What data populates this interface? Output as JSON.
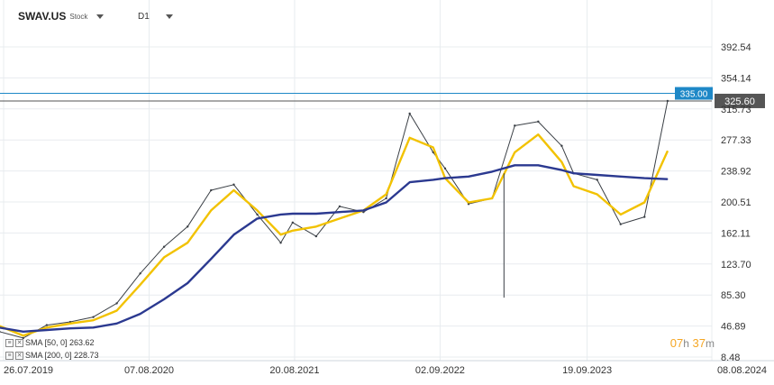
{
  "header": {
    "symbol": "SWAV.US",
    "instrument_type": "Stock",
    "timeframe": "D1"
  },
  "indicators": [
    {
      "label": "SMA [50, 0] 263.62",
      "color": "#f2c200"
    },
    {
      "label": "SMA [200, 0] 228.73",
      "color": "#2b3990"
    }
  ],
  "timer": {
    "hours": "07",
    "h_unit": "h",
    "minutes": "37",
    "m_unit": "m"
  },
  "chart_data": {
    "type": "line",
    "title": "",
    "xlabel": "",
    "ylabel": "",
    "x_ticks": [
      "26.07.2019",
      "07.08.2020",
      "20.08.2021",
      "02.09.2022",
      "19.09.2023",
      "08.08.2024"
    ],
    "y_ticks": [
      392.54,
      354.14,
      315.73,
      277.33,
      238.92,
      200.51,
      162.11,
      123.7,
      85.3,
      46.89,
      8.48
    ],
    "ylim": [
      8.48,
      392.54
    ],
    "grid": true,
    "horizontal_levels": [
      {
        "label": "335.00",
        "value": 335.0,
        "color": "#1e88c7"
      },
      {
        "label": "325.60",
        "value": 325.6,
        "color": "#555555"
      }
    ],
    "series": [
      {
        "name": "SWAV.US",
        "color": "#3a3f45",
        "x": [
          "2019-07",
          "2019-09",
          "2019-11",
          "2020-01",
          "2020-03",
          "2020-05",
          "2020-07",
          "2020-09",
          "2020-11",
          "2021-01",
          "2021-03",
          "2021-05",
          "2021-07",
          "2021-08",
          "2021-10",
          "2021-12",
          "2022-02",
          "2022-04",
          "2022-06",
          "2022-08",
          "2022-09",
          "2022-11",
          "2023-01",
          "2023-03",
          "2023-05",
          "2023-07",
          "2023-08",
          "2023-10",
          "2023-12",
          "2024-02",
          "2024-04"
        ],
        "values": [
          40,
          32,
          48,
          52,
          58,
          75,
          112,
          145,
          170,
          215,
          222,
          185,
          150,
          175,
          158,
          195,
          188,
          205,
          310,
          262,
          242,
          198,
          205,
          295,
          300,
          270,
          236,
          228,
          173,
          182,
          325.6
        ]
      },
      {
        "name": "SMA [50, 0]",
        "color": "#f2c200",
        "x": [
          "2019-07",
          "2019-09",
          "2019-11",
          "2020-01",
          "2020-03",
          "2020-05",
          "2020-07",
          "2020-09",
          "2020-11",
          "2021-01",
          "2021-03",
          "2021-05",
          "2021-07",
          "2021-08",
          "2021-10",
          "2021-12",
          "2022-02",
          "2022-04",
          "2022-06",
          "2022-08",
          "2022-09",
          "2022-11",
          "2023-01",
          "2023-03",
          "2023-05",
          "2023-07",
          "2023-08",
          "2023-10",
          "2023-12",
          "2024-02",
          "2024-04"
        ],
        "values": [
          47,
          35,
          45,
          50,
          54,
          66,
          98,
          132,
          150,
          190,
          215,
          190,
          160,
          165,
          170,
          180,
          190,
          210,
          280,
          268,
          230,
          200,
          205,
          262,
          284,
          250,
          220,
          210,
          185,
          200,
          263.62
        ]
      },
      {
        "name": "SMA [200, 0]",
        "color": "#2b3990",
        "x": [
          "2019-07",
          "2019-09",
          "2019-11",
          "2020-01",
          "2020-03",
          "2020-05",
          "2020-07",
          "2020-09",
          "2020-11",
          "2021-01",
          "2021-03",
          "2021-05",
          "2021-07",
          "2021-08",
          "2021-10",
          "2021-12",
          "2022-02",
          "2022-04",
          "2022-06",
          "2022-08",
          "2022-09",
          "2022-11",
          "2023-01",
          "2023-03",
          "2023-05",
          "2023-07",
          "2023-08",
          "2023-10",
          "2023-12",
          "2024-02",
          "2024-04"
        ],
        "values": [
          45,
          40,
          42,
          44,
          45,
          50,
          62,
          80,
          100,
          130,
          160,
          180,
          185,
          186,
          186,
          188,
          190,
          200,
          225,
          228,
          230,
          232,
          238,
          246,
          246,
          240,
          236,
          234,
          232,
          230,
          228.73
        ]
      }
    ],
    "spike_low": {
      "x": "2023-02",
      "value": 82
    }
  }
}
